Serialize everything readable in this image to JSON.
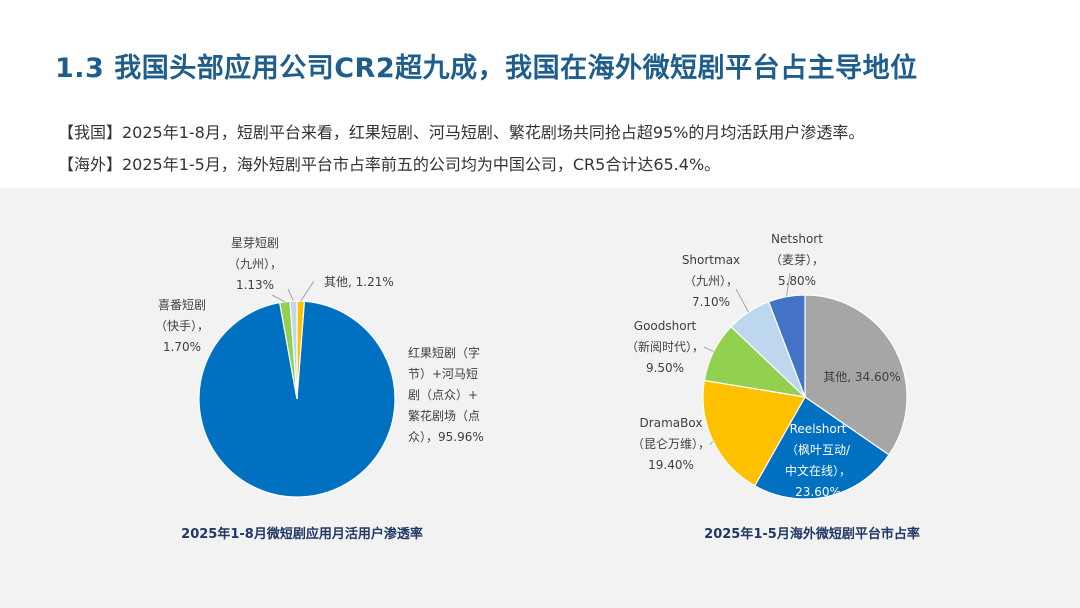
{
  "header": {
    "title": "1.3 我国头部应用公司CR2超九成，我国在海外微短剧平台占主导地位"
  },
  "bullets": [
    "【我国】2025年1-8月，短剧平台来看，红果短剧、河马短剧、繁花剧场共同抢占超95%的月均活跃用户渗透率。",
    "【海外】2025年1-5月，海外短剧平台市占率前五的公司均为中国公司，CR5合计达65.4%。"
  ],
  "colors": {
    "title": "#1f5e8c",
    "caption": "#1f3864",
    "background_band": "#f2f2f2"
  },
  "chart_data": [
    {
      "type": "pie",
      "title": "2025年1-8月微短剧应用月活用户渗透率",
      "slices": [
        {
          "label_lines": [
            "红果短剧（字",
            "节）+河马短",
            "剧（点众）+",
            "繁花剧场（点",
            "众），95.96%"
          ],
          "value": 95.96,
          "color": "#0070c0"
        },
        {
          "label_lines": [
            "喜番短剧",
            "（快手），",
            "1.70%"
          ],
          "value": 1.7,
          "color": "#92d050"
        },
        {
          "label_lines": [
            "星芽短剧",
            "（九州），",
            "1.13%"
          ],
          "value": 1.13,
          "color": "#bdd7ee"
        },
        {
          "label_lines": [
            "其他, 1.21%"
          ],
          "value": 1.21,
          "color": "#ffc000"
        }
      ]
    },
    {
      "type": "pie",
      "title": "2025年1-5月海外微短剧平台市占率",
      "slices": [
        {
          "label_lines": [
            "其他, 34.60%"
          ],
          "value": 34.6,
          "color": "#a6a6a6"
        },
        {
          "label_lines": [
            "Reelshort",
            "（枫叶互动/",
            "中文在线），",
            "23.60%"
          ],
          "value": 23.6,
          "color": "#0070c0"
        },
        {
          "label_lines": [
            "DramaBox",
            "（昆仑万维），",
            "19.40%"
          ],
          "value": 19.4,
          "color": "#ffc000"
        },
        {
          "label_lines": [
            "Goodshort",
            "（新阅时代），",
            "9.50%"
          ],
          "value": 9.5,
          "color": "#92d050"
        },
        {
          "label_lines": [
            "Shortmax",
            "（九州），",
            "7.10%"
          ],
          "value": 7.1,
          "color": "#bdd7ee"
        },
        {
          "label_lines": [
            "Netshort",
            "（麦芽），",
            "5.80%"
          ],
          "value": 5.8,
          "color": "#4472c4"
        }
      ]
    }
  ]
}
